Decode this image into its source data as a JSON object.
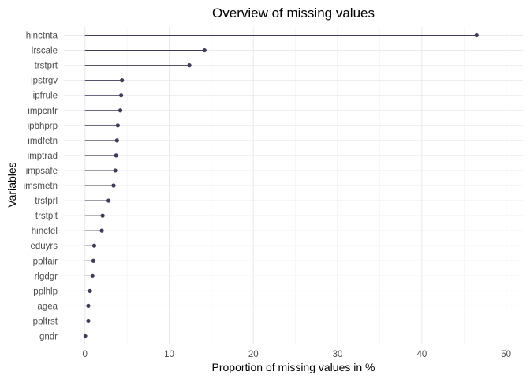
{
  "chart_data": {
    "type": "lollipop",
    "title": "Overview of missing values",
    "xlabel": "Proportion of missing values in %",
    "ylabel": "Variables",
    "xlim": [
      -2.5,
      52
    ],
    "x_ticks": [
      0,
      10,
      20,
      30,
      40,
      50
    ],
    "grid": true,
    "legend": "none",
    "colors": {
      "segment": "#3f3b5a",
      "point": "#3f3b5a"
    },
    "categories": [
      "hinctnta",
      "lrscale",
      "trstprt",
      "ipstrgv",
      "ipfrule",
      "impcntr",
      "ipbhprp",
      "imdfetn",
      "imptrad",
      "impsafe",
      "imsmetn",
      "trstprl",
      "trstplt",
      "hincfel",
      "eduyrs",
      "pplfair",
      "rlgdgr",
      "pplhlp",
      "agea",
      "ppltrst",
      "gndr"
    ],
    "values": [
      46.5,
      14.2,
      12.4,
      4.4,
      4.3,
      4.2,
      3.9,
      3.8,
      3.7,
      3.6,
      3.4,
      2.8,
      2.1,
      2.0,
      1.1,
      1.0,
      0.9,
      0.6,
      0.4,
      0.4,
      0.05
    ]
  }
}
